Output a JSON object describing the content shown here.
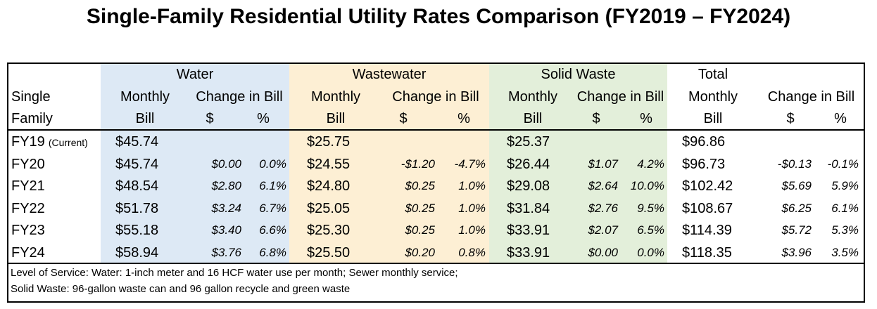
{
  "title": "Single-Family Residential Utility Rates Comparison (FY2019 – FY2024)",
  "headers": {
    "groups": {
      "water": "Water",
      "wastewater": "Wastewater",
      "solid_waste": "Solid Waste",
      "total": "Total"
    },
    "row_label_1": "Single",
    "row_label_2": "Family",
    "monthly": "Monthly",
    "bill": "Bill",
    "change_in_bill": "Change in Bill",
    "dollar": "$",
    "percent": "%"
  },
  "rows": [
    {
      "year": "FY19",
      "suffix": "(Current)",
      "water_bill": "$45.74",
      "water_chg": "",
      "water_pct": "",
      "ww_bill": "$25.75",
      "ww_chg": "",
      "ww_pct": "",
      "sw_bill": "$25.37",
      "sw_chg": "",
      "sw_pct": "",
      "total_bill": "$96.86",
      "total_chg": "",
      "total_pct": ""
    },
    {
      "year": "FY20",
      "suffix": "",
      "water_bill": "$45.74",
      "water_chg": "$0.00",
      "water_pct": "0.0%",
      "ww_bill": "$24.55",
      "ww_chg": "-$1.20",
      "ww_pct": "-4.7%",
      "sw_bill": "$26.44",
      "sw_chg": "$1.07",
      "sw_pct": "4.2%",
      "total_bill": "$96.73",
      "total_chg": "-$0.13",
      "total_pct": "-0.1%"
    },
    {
      "year": "FY21",
      "suffix": "",
      "water_bill": "$48.54",
      "water_chg": "$2.80",
      "water_pct": "6.1%",
      "ww_bill": "$24.80",
      "ww_chg": "$0.25",
      "ww_pct": "1.0%",
      "sw_bill": "$29.08",
      "sw_chg": "$2.64",
      "sw_pct": "10.0%",
      "total_bill": "$102.42",
      "total_chg": "$5.69",
      "total_pct": "5.9%"
    },
    {
      "year": "FY22",
      "suffix": "",
      "water_bill": "$51.78",
      "water_chg": "$3.24",
      "water_pct": "6.7%",
      "ww_bill": "$25.05",
      "ww_chg": "$0.25",
      "ww_pct": "1.0%",
      "sw_bill": "$31.84",
      "sw_chg": "$2.76",
      "sw_pct": "9.5%",
      "total_bill": "$108.67",
      "total_chg": "$6.25",
      "total_pct": "6.1%"
    },
    {
      "year": "FY23",
      "suffix": "",
      "water_bill": "$55.18",
      "water_chg": "$3.40",
      "water_pct": "6.6%",
      "ww_bill": "$25.30",
      "ww_chg": "$0.25",
      "ww_pct": "1.0%",
      "sw_bill": "$33.91",
      "sw_chg": "$2.07",
      "sw_pct": "6.5%",
      "total_bill": "$114.39",
      "total_chg": "$5.72",
      "total_pct": "5.3%"
    },
    {
      "year": "FY24",
      "suffix": "",
      "water_bill": "$58.94",
      "water_chg": "$3.76",
      "water_pct": "6.8%",
      "ww_bill": "$25.50",
      "ww_chg": "$0.20",
      "ww_pct": "0.8%",
      "sw_bill": "$33.91",
      "sw_chg": "$0.00",
      "sw_pct": "0.0%",
      "total_bill": "$118.35",
      "total_chg": "$3.96",
      "total_pct": "3.5%"
    }
  ],
  "notes": [
    "Level of Service: Water: 1-inch meter and 16 HCF water use per month; Sewer monthly service;",
    "Solid Waste: 96-gallon waste can and 96 gallon recycle and green waste"
  ],
  "colors": {
    "water_bg": "#dde9f5",
    "wastewater_bg": "#fdefd4",
    "solid_waste_bg": "#e3efda"
  }
}
